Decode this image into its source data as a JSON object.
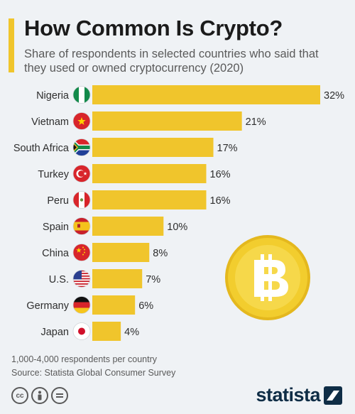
{
  "header": {
    "title": "How Common Is Crypto?",
    "subtitle": "Share of respondents in selected countries who said that they used or owned cryptocurrency (2020)"
  },
  "chart_data": {
    "type": "bar",
    "orientation": "horizontal",
    "categories": [
      "Nigeria",
      "Vietnam",
      "South Africa",
      "Turkey",
      "Peru",
      "Spain",
      "China",
      "U.S.",
      "Germany",
      "Japan"
    ],
    "values": [
      32,
      21,
      17,
      16,
      16,
      10,
      8,
      7,
      6,
      4
    ],
    "value_labels": [
      "32%",
      "21%",
      "17%",
      "16%",
      "16%",
      "10%",
      "8%",
      "7%",
      "6%",
      "4%"
    ],
    "unit": "%",
    "title": "How Common Is Crypto?",
    "subtitle": "Share of respondents in selected countries who said that they used or owned cryptocurrency (2020)",
    "xlim": [
      0,
      32
    ],
    "grid": false,
    "legend": "none",
    "bar_color": "#f0c52c",
    "flag_icons": [
      "nigeria-flag-icon",
      "vietnam-flag-icon",
      "south-africa-flag-icon",
      "turkey-flag-icon",
      "peru-flag-icon",
      "spain-flag-icon",
      "china-flag-icon",
      "us-flag-icon",
      "germany-flag-icon",
      "japan-flag-icon"
    ]
  },
  "footer": {
    "note": "1,000-4,000 respondents per country",
    "source": "Source: Statista Global Consumer Survey",
    "logo": "statista",
    "license_icons": [
      "cc-icon",
      "by-icon",
      "nd-icon"
    ]
  },
  "decoration": {
    "coin_icon": "bitcoin-coin-icon",
    "coin_color": "#f2cd2e"
  },
  "colors": {
    "background": "#eff2f5",
    "accent": "#f0c52c",
    "brand": "#0f2d46"
  }
}
